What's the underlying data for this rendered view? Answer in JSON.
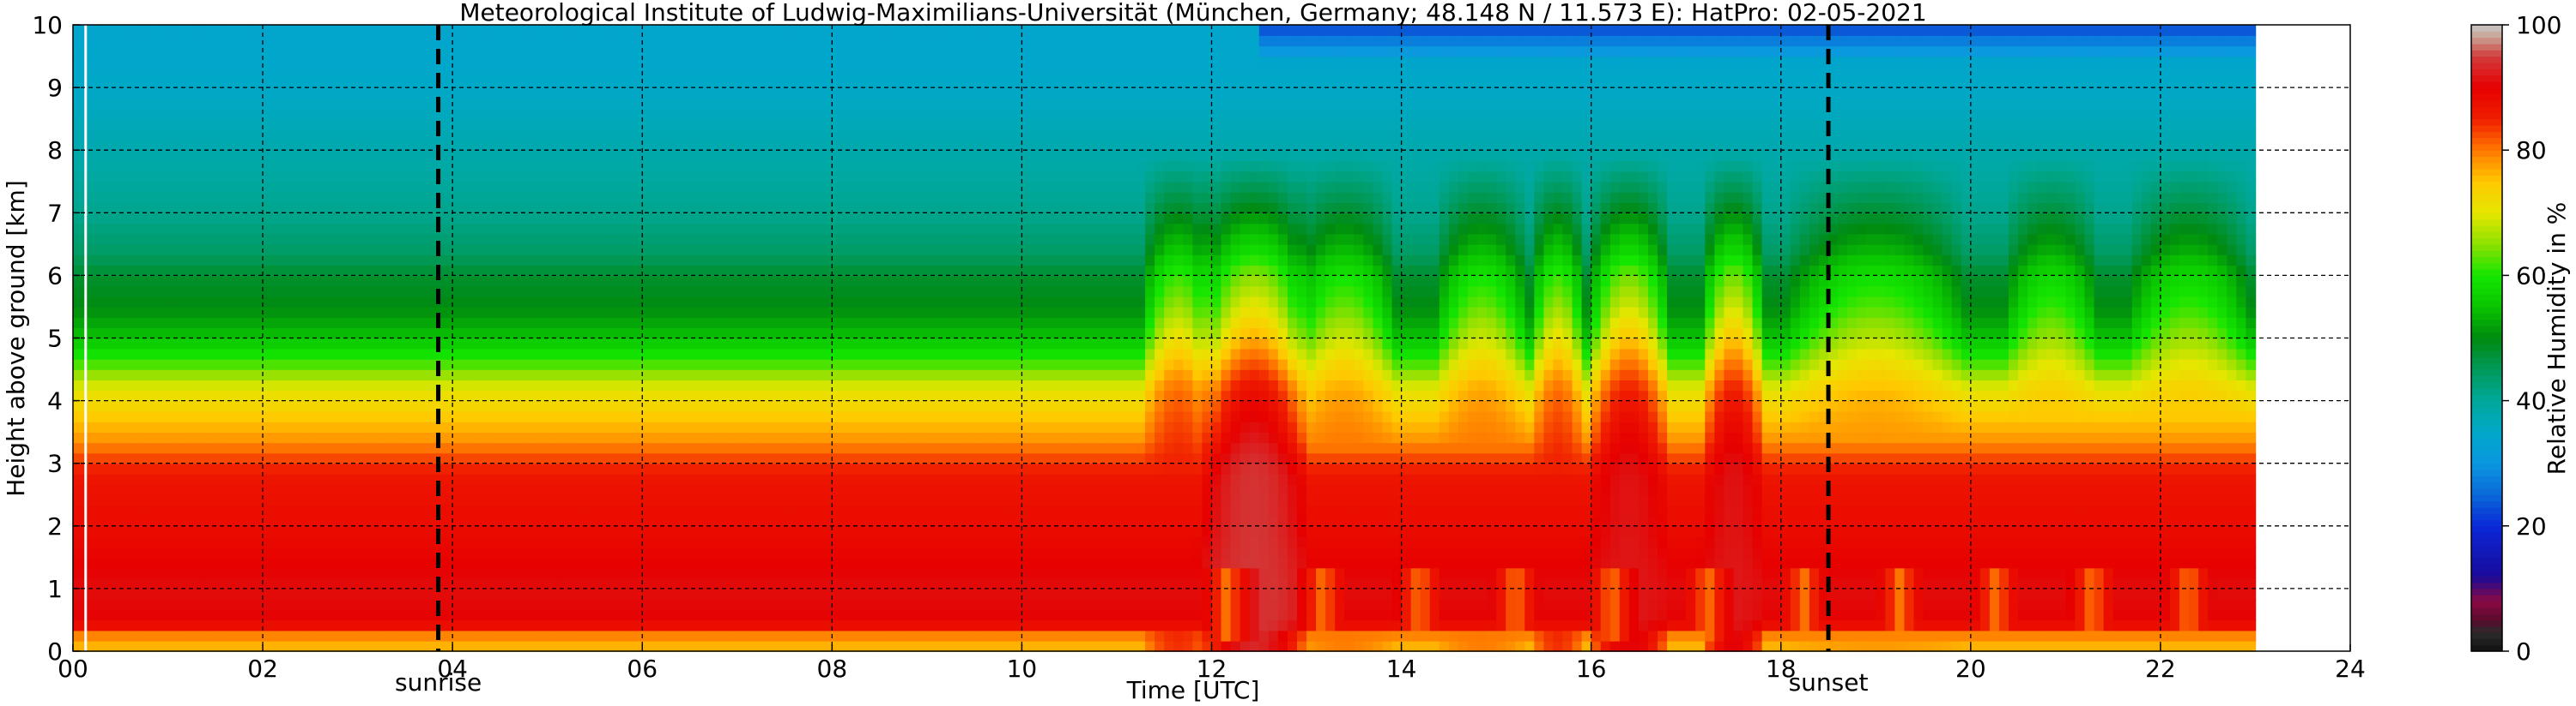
{
  "chart_data": {
    "type": "heatmap",
    "title": "Meteorological Institute of Ludwig-Maximilians-Universität (München, Germany; 48.148 N / 11.573 E):    HatPro: 02-05-2021",
    "xlabel": "Time [UTC]",
    "ylabel": "Height above ground [km]",
    "colorbar_label": "Relative Humidity in %",
    "xlim": [
      0,
      24
    ],
    "ylim": [
      0,
      10
    ],
    "clim": [
      0,
      100
    ],
    "x_ticks": [
      "00",
      "02",
      "04",
      "06",
      "08",
      "10",
      "12",
      "14",
      "16",
      "18",
      "20",
      "22",
      "24"
    ],
    "y_ticks": [
      "0",
      "1",
      "2",
      "3",
      "4",
      "5",
      "6",
      "7",
      "8",
      "9",
      "10"
    ],
    "colorbar_ticks": [
      "0",
      "20",
      "40",
      "60",
      "80",
      "100"
    ],
    "data_time_range": [
      0.0,
      23.0
    ],
    "grid": true,
    "grid_style": "dashed",
    "events": [
      {
        "label": "sunrise",
        "time": 3.85
      },
      {
        "label": "sunset",
        "time": 18.5
      }
    ],
    "colormap": [
      [
        0,
        "#111111"
      ],
      [
        3,
        "#2b2b2b"
      ],
      [
        5,
        "#5a0a2c"
      ],
      [
        8,
        "#8a0a42"
      ],
      [
        12,
        "#1a0a9a"
      ],
      [
        20,
        "#0a28d8"
      ],
      [
        25,
        "#0a6ad8"
      ],
      [
        30,
        "#0a96e0"
      ],
      [
        35,
        "#00a8c8"
      ],
      [
        40,
        "#00a89a"
      ],
      [
        45,
        "#009a5a"
      ],
      [
        50,
        "#008a10"
      ],
      [
        55,
        "#0ac400"
      ],
      [
        60,
        "#14e600"
      ],
      [
        65,
        "#8ce000"
      ],
      [
        70,
        "#e6e600"
      ],
      [
        75,
        "#ffc800"
      ],
      [
        80,
        "#ff7800"
      ],
      [
        85,
        "#f01e00"
      ],
      [
        90,
        "#e60000"
      ],
      [
        95,
        "#d23c3c"
      ],
      [
        98,
        "#c8a090"
      ],
      [
        100,
        "#c8c8c8"
      ]
    ],
    "rh_profile_clear_sky": {
      "height_km": [
        0,
        0.3,
        0.45,
        1,
        2,
        2.7,
        3,
        3.4,
        3.8,
        4.2,
        4.6,
        5,
        5.5,
        6,
        6.4,
        7,
        8,
        9,
        10
      ],
      "rh_percent": [
        75,
        80,
        90,
        91,
        88,
        87,
        84,
        78,
        74,
        70,
        62,
        55,
        50,
        48,
        44,
        41,
        38,
        35,
        34
      ]
    },
    "humid_episodes_utc": [
      {
        "start": 11.4,
        "end": 11.9,
        "peak_rh": 85
      },
      {
        "start": 12.0,
        "end": 12.9,
        "peak_rh": 95
      },
      {
        "start": 13.0,
        "end": 13.8,
        "peak_rh": 80
      },
      {
        "start": 14.5,
        "end": 15.2,
        "peak_rh": 80
      },
      {
        "start": 15.5,
        "end": 15.8,
        "peak_rh": 85
      },
      {
        "start": 16.1,
        "end": 16.7,
        "peak_rh": 92
      },
      {
        "start": 17.3,
        "end": 17.7,
        "peak_rh": 92
      },
      {
        "start": 18.2,
        "end": 19.8,
        "peak_rh": 78
      },
      {
        "start": 20.5,
        "end": 21.2,
        "peak_rh": 75
      },
      {
        "start": 21.8,
        "end": 22.8,
        "peak_rh": 75
      }
    ],
    "colors": {
      "event_line": "#000000",
      "gridline": "#000000",
      "background": "#ffffff"
    }
  }
}
